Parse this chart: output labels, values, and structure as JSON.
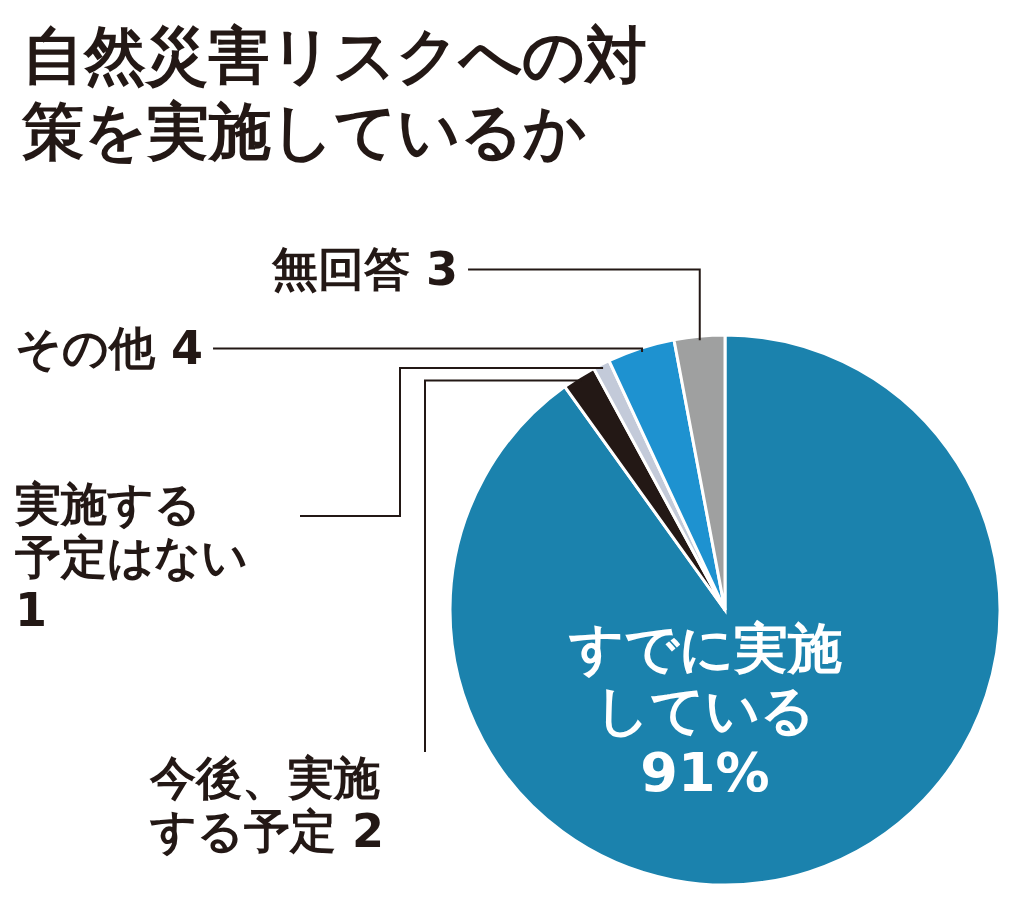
{
  "chart_data": {
    "type": "pie",
    "title": "自然災害リスクへの対策を実施しているか",
    "categories": [
      "すでに実施している",
      "今後、実施する予定",
      "実施する予定はない",
      "その他",
      "無回答"
    ],
    "values": [
      91,
      2,
      1,
      4,
      3
    ],
    "colors": [
      "#1b82ad",
      "#231815",
      "#c3cad9",
      "#1e92d0",
      "#9fa0a0"
    ],
    "value_labels": [
      "91%",
      "2",
      "1",
      "4",
      "3"
    ]
  }
}
